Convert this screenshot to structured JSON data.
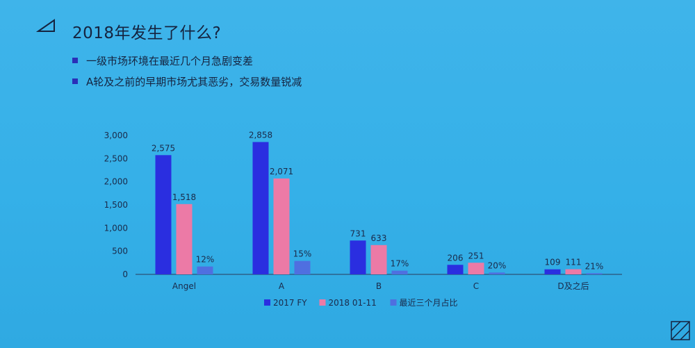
{
  "slide": {
    "title": "2018年发生了什么?",
    "bullets": [
      "一级市场环境在最近几个月急剧变差",
      "A轮及之前的早期市场尤其恶劣，交易数量锐减"
    ]
  },
  "colors": {
    "series_2017": "#2a2ee0",
    "series_2018": "#ec7aa6",
    "series_ratio": "#4f6fe0",
    "text": "#15233f",
    "axis": "#1a2a4a"
  },
  "chart_data": {
    "type": "bar",
    "categories": [
      "Angel",
      "A",
      "B",
      "C",
      "D及之后"
    ],
    "series": [
      {
        "name": "2017 FY",
        "values": [
          2575,
          2858,
          731,
          206,
          109
        ],
        "labels": [
          "2,575",
          "2,858",
          "731",
          "206",
          "109"
        ]
      },
      {
        "name": "2018 01-11",
        "values": [
          1518,
          2071,
          633,
          251,
          111
        ],
        "labels": [
          "1,518",
          "2,071",
          "633",
          "251",
          "111"
        ]
      },
      {
        "name": "最近三个月占比",
        "values": [
          12,
          15,
          17,
          20,
          21
        ],
        "labels": [
          "12%",
          "15%",
          "17%",
          "20%",
          "21%"
        ],
        "display_values": [
          170,
          290,
          80,
          40,
          25
        ]
      }
    ],
    "ylim": [
      0,
      3000
    ],
    "yticks": [
      "0",
      "500",
      "1,000",
      "1,500",
      "2,000",
      "2,500",
      "3,000"
    ],
    "legend_position": "bottom",
    "grid": false
  }
}
